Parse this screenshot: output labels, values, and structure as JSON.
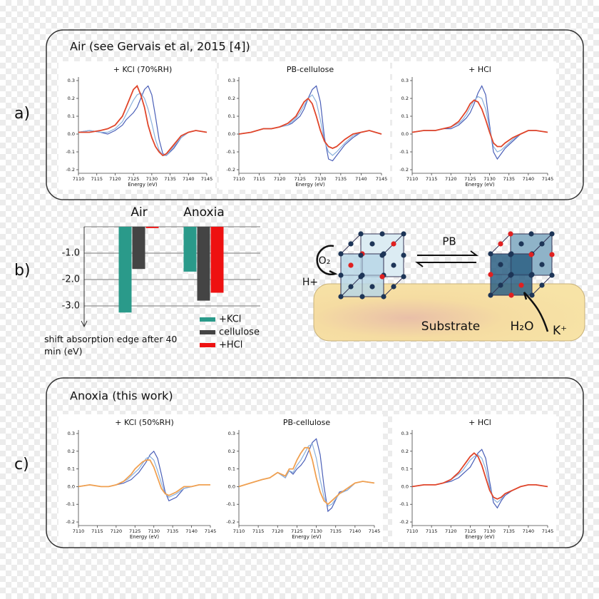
{
  "panels": {
    "a": "a)",
    "b": "b)",
    "c": "c)"
  },
  "sections": {
    "air": "Air (see Gervais et al, 2015 [4])",
    "anoxia": "Anoxia (this work)"
  },
  "diagram": {
    "arrow": "PB",
    "o2": "O₂",
    "h": "H+",
    "substrate": "Substrate",
    "h2o": "H₂O",
    "k": "K⁺"
  },
  "chart_data": [
    {
      "type": "line",
      "title": "+ KCl (70%RH)",
      "title_color": "#2a9d8f",
      "xlabel": "Energy (eV)",
      "x": [
        7110,
        7113,
        7116,
        7118,
        7120,
        7122,
        7123,
        7124,
        7125,
        7126,
        7127,
        7128,
        7129,
        7130,
        7131,
        7132,
        7133,
        7134,
        7136,
        7138,
        7140,
        7142,
        7145
      ],
      "xlim": [
        7110,
        7145
      ],
      "xticks": [
        7110,
        7115,
        7120,
        7125,
        7130,
        7135,
        7140,
        7145
      ],
      "ylim": [
        -0.22,
        0.32
      ],
      "yticks": [
        -0.2,
        -0.1,
        {
          "value": 0,
          "label": "0.0"
        },
        0.1,
        0.2,
        0.3
      ],
      "series": [
        {
          "color": "#4a5fb8",
          "values": [
            0.01,
            0.02,
            0.01,
            0.0,
            0.02,
            0.05,
            0.08,
            0.1,
            0.12,
            0.15,
            0.2,
            0.25,
            0.27,
            0.22,
            0.1,
            -0.03,
            -0.11,
            -0.12,
            -0.08,
            -0.02,
            0.01,
            0.02,
            0.01
          ]
        },
        {
          "color": "#8ab0dc",
          "values": [
            0.01,
            0.02,
            0.01,
            0.01,
            0.03,
            0.07,
            0.11,
            0.15,
            0.19,
            0.22,
            0.23,
            0.2,
            0.14,
            0.06,
            -0.03,
            -0.09,
            -0.12,
            -0.12,
            -0.07,
            -0.02,
            0.01,
            0.02,
            0.01
          ]
        },
        {
          "color": "#e0452a",
          "values": [
            0.01,
            0.01,
            0.02,
            0.03,
            0.05,
            0.1,
            0.15,
            0.2,
            0.25,
            0.27,
            0.22,
            0.15,
            0.05,
            -0.02,
            -0.07,
            -0.1,
            -0.12,
            -0.11,
            -0.06,
            -0.01,
            0.01,
            0.02,
            0.01
          ]
        }
      ]
    },
    {
      "type": "line",
      "title": "PB-cellulose",
      "title_color": "#111111",
      "xlabel": "Energy (eV)",
      "x": [
        7110,
        7113,
        7116,
        7118,
        7120,
        7122,
        7123,
        7124,
        7125,
        7126,
        7127,
        7128,
        7129,
        7130,
        7131,
        7132,
        7133,
        7134,
        7136,
        7138,
        7140,
        7142,
        7145
      ],
      "xlim": [
        7110,
        7145
      ],
      "xticks": [
        7110,
        7115,
        7120,
        7125,
        7130,
        7135,
        7140,
        7145
      ],
      "ylim": [
        -0.22,
        0.32
      ],
      "yticks": [
        -0.2,
        -0.1,
        {
          "value": 0,
          "label": "0.0"
        },
        0.1,
        0.2,
        0.3
      ],
      "series": [
        {
          "color": "#4a5fb8",
          "values": [
            0.0,
            0.01,
            0.03,
            0.03,
            0.04,
            0.05,
            0.06,
            0.08,
            0.1,
            0.14,
            0.2,
            0.25,
            0.27,
            0.18,
            -0.02,
            -0.14,
            -0.15,
            -0.12,
            -0.06,
            -0.02,
            0.01,
            0.02,
            0.0
          ]
        },
        {
          "color": "#8ab0dc",
          "values": [
            0.0,
            0.01,
            0.03,
            0.03,
            0.04,
            0.05,
            0.07,
            0.09,
            0.12,
            0.16,
            0.2,
            0.22,
            0.18,
            0.08,
            -0.04,
            -0.1,
            -0.12,
            -0.1,
            -0.05,
            -0.01,
            0.01,
            0.02,
            0.0
          ]
        },
        {
          "color": "#e0452a",
          "values": [
            0.0,
            0.01,
            0.03,
            0.03,
            0.04,
            0.06,
            0.08,
            0.1,
            0.14,
            0.18,
            0.2,
            0.17,
            0.1,
            0.02,
            -0.04,
            -0.07,
            -0.08,
            -0.07,
            -0.03,
            0.0,
            0.01,
            0.02,
            0.0
          ]
        }
      ]
    },
    {
      "type": "line",
      "title": "+ HCl",
      "title_color": "#d62728",
      "xlabel": "Energy (eV)",
      "x": [
        7110,
        7113,
        7116,
        7118,
        7120,
        7122,
        7123,
        7124,
        7125,
        7126,
        7127,
        7128,
        7129,
        7130,
        7131,
        7132,
        7133,
        7134,
        7136,
        7138,
        7140,
        7142,
        7145
      ],
      "xlim": [
        7110,
        7145
      ],
      "xticks": [
        7110,
        7115,
        7120,
        7125,
        7130,
        7135,
        7140,
        7145
      ],
      "ylim": [
        -0.22,
        0.32
      ],
      "yticks": [
        -0.2,
        -0.1,
        {
          "value": 0,
          "label": "0.0"
        },
        0.1,
        0.2,
        0.3
      ],
      "series": [
        {
          "color": "#4a5fb8",
          "values": [
            0.01,
            0.02,
            0.02,
            0.03,
            0.03,
            0.05,
            0.07,
            0.09,
            0.12,
            0.17,
            0.23,
            0.27,
            0.22,
            0.05,
            -0.1,
            -0.14,
            -0.11,
            -0.08,
            -0.04,
            0.0,
            0.02,
            0.02,
            0.01
          ]
        },
        {
          "color": "#8ab0dc",
          "values": [
            0.01,
            0.02,
            0.02,
            0.03,
            0.04,
            0.06,
            0.08,
            0.11,
            0.15,
            0.19,
            0.21,
            0.2,
            0.14,
            0.03,
            -0.07,
            -0.1,
            -0.09,
            -0.07,
            -0.03,
            0.0,
            0.02,
            0.02,
            0.01
          ]
        },
        {
          "color": "#e0452a",
          "values": [
            0.01,
            0.02,
            0.02,
            0.03,
            0.04,
            0.07,
            0.1,
            0.13,
            0.17,
            0.19,
            0.18,
            0.14,
            0.08,
            0.01,
            -0.05,
            -0.07,
            -0.07,
            -0.05,
            -0.02,
            0.0,
            0.02,
            0.02,
            0.01
          ]
        }
      ]
    },
    {
      "type": "line",
      "title": "+ KCl (50%RH)",
      "title_color": "#2a9d8f",
      "xlabel": "Energy (eV)",
      "x": [
        7110,
        7113,
        7116,
        7118,
        7120,
        7122,
        7123,
        7124,
        7125,
        7126,
        7127,
        7128,
        7129,
        7130,
        7131,
        7132,
        7133,
        7134,
        7136,
        7138,
        7140,
        7142,
        7145
      ],
      "xlim": [
        7110,
        7145
      ],
      "xticks": [
        7110,
        7115,
        7120,
        7125,
        7130,
        7135,
        7140,
        7145
      ],
      "ylim": [
        -0.22,
        0.32
      ],
      "yticks": [
        -0.2,
        -0.1,
        {
          "value": 0,
          "label": "0.0"
        },
        0.1,
        0.2,
        0.3
      ],
      "series": [
        {
          "color": "#4a5fb8",
          "values": [
            0.0,
            0.01,
            0.0,
            0.0,
            0.01,
            0.02,
            0.03,
            0.04,
            0.06,
            0.08,
            0.11,
            0.14,
            0.18,
            0.2,
            0.16,
            0.07,
            -0.03,
            -0.08,
            -0.06,
            -0.01,
            0.0,
            0.01,
            0.01
          ]
        },
        {
          "color": "#8ab0dc",
          "values": [
            0.0,
            0.01,
            0.0,
            0.0,
            0.01,
            0.03,
            0.04,
            0.06,
            0.08,
            0.1,
            0.13,
            0.16,
            0.17,
            0.15,
            0.09,
            0.02,
            -0.04,
            -0.06,
            -0.04,
            -0.01,
            0.0,
            0.01,
            0.01
          ]
        },
        {
          "color": "#f0a050",
          "values": [
            0.0,
            0.01,
            0.0,
            0.0,
            0.01,
            0.03,
            0.05,
            0.07,
            0.1,
            0.12,
            0.14,
            0.15,
            0.15,
            0.11,
            0.05,
            -0.01,
            -0.04,
            -0.05,
            -0.03,
            0.0,
            0.0,
            0.01,
            0.01
          ]
        }
      ]
    },
    {
      "type": "line",
      "title": "PB-cellulose",
      "title_color": "#111111",
      "xlabel": "Energy (eV)",
      "x": [
        7110,
        7113,
        7116,
        7118,
        7120,
        7122,
        7123,
        7124,
        7125,
        7126,
        7127,
        7128,
        7129,
        7130,
        7131,
        7132,
        7133,
        7134,
        7136,
        7138,
        7140,
        7142,
        7145
      ],
      "xlim": [
        7110,
        7145
      ],
      "xticks": [
        7110,
        7115,
        7120,
        7125,
        7130,
        7135,
        7140,
        7145
      ],
      "ylim": [
        -0.22,
        0.32
      ],
      "yticks": [
        -0.2,
        -0.1,
        {
          "value": 0,
          "label": "0.0"
        },
        0.1,
        0.2,
        0.3
      ],
      "series": [
        {
          "color": "#4a5fb8",
          "values": [
            0.0,
            0.02,
            0.04,
            0.05,
            0.08,
            0.05,
            0.09,
            0.07,
            0.1,
            0.12,
            0.15,
            0.2,
            0.25,
            0.27,
            0.18,
            0.0,
            -0.14,
            -0.12,
            -0.03,
            -0.02,
            0.02,
            0.03,
            0.02
          ]
        },
        {
          "color": "#8ab0dc",
          "values": [
            0.0,
            0.02,
            0.04,
            0.05,
            0.08,
            0.05,
            0.09,
            0.08,
            0.12,
            0.15,
            0.19,
            0.23,
            0.24,
            0.16,
            0.04,
            -0.06,
            -0.11,
            -0.1,
            -0.04,
            -0.02,
            0.02,
            0.03,
            0.02
          ]
        },
        {
          "color": "#f0a050",
          "values": [
            0.0,
            0.02,
            0.04,
            0.05,
            0.08,
            0.06,
            0.1,
            0.1,
            0.15,
            0.19,
            0.22,
            0.22,
            0.15,
            0.05,
            -0.03,
            -0.08,
            -0.1,
            -0.08,
            -0.04,
            -0.01,
            0.02,
            0.03,
            0.02
          ]
        }
      ]
    },
    {
      "type": "line",
      "title": "+ HCl",
      "title_color": "#d62728",
      "xlabel": "Energy (eV)",
      "x": [
        7110,
        7113,
        7116,
        7118,
        7120,
        7122,
        7123,
        7124,
        7125,
        7126,
        7127,
        7128,
        7129,
        7130,
        7131,
        7132,
        7133,
        7134,
        7136,
        7138,
        7140,
        7142,
        7145
      ],
      "xlim": [
        7110,
        7145
      ],
      "xticks": [
        7110,
        7115,
        7120,
        7125,
        7130,
        7135,
        7140,
        7145
      ],
      "ylim": [
        -0.22,
        0.32
      ],
      "yticks": [
        -0.2,
        -0.1,
        {
          "value": 0,
          "label": "0.0"
        },
        0.1,
        0.2,
        0.3
      ],
      "series": [
        {
          "color": "#4a5fb8",
          "values": [
            0.0,
            0.01,
            0.01,
            0.02,
            0.03,
            0.05,
            0.07,
            0.09,
            0.11,
            0.15,
            0.19,
            0.21,
            0.16,
            0.03,
            -0.09,
            -0.12,
            -0.08,
            -0.05,
            -0.02,
            0.0,
            0.01,
            0.01,
            0.0
          ]
        },
        {
          "color": "#8ab0dc",
          "values": [
            0.0,
            0.01,
            0.01,
            0.02,
            0.04,
            0.07,
            0.09,
            0.12,
            0.15,
            0.17,
            0.18,
            0.16,
            0.1,
            0.0,
            -0.07,
            -0.09,
            -0.07,
            -0.04,
            -0.02,
            0.0,
            0.01,
            0.01,
            0.0
          ]
        },
        {
          "color": "#e0452a",
          "values": [
            0.0,
            0.01,
            0.01,
            0.02,
            0.04,
            0.08,
            0.11,
            0.14,
            0.17,
            0.19,
            0.17,
            0.12,
            0.05,
            -0.02,
            -0.06,
            -0.07,
            -0.06,
            -0.04,
            -0.02,
            0.0,
            0.01,
            0.01,
            0.0
          ]
        }
      ]
    },
    {
      "type": "bar",
      "categories": [
        "Air",
        "Anoxia"
      ],
      "ylabel": "shift absorption edge after 40 min (eV)",
      "ylim": [
        -3.5,
        0
      ],
      "yticks": [
        {
          "value": -1,
          "label": "-1.0"
        },
        {
          "value": -2,
          "label": "-2.0"
        },
        {
          "value": -3,
          "label": "-3.0"
        }
      ],
      "grid": true,
      "series": [
        {
          "name": "+KCl",
          "color": "#2a9a8a",
          "values": [
            -3.25,
            -1.7
          ]
        },
        {
          "name": "cellulose",
          "color": "#444444",
          "values": [
            -1.6,
            -2.8
          ]
        },
        {
          "name": "+HCl",
          "color": "#ee1111",
          "values": [
            -0.05,
            -2.5
          ]
        }
      ]
    }
  ]
}
